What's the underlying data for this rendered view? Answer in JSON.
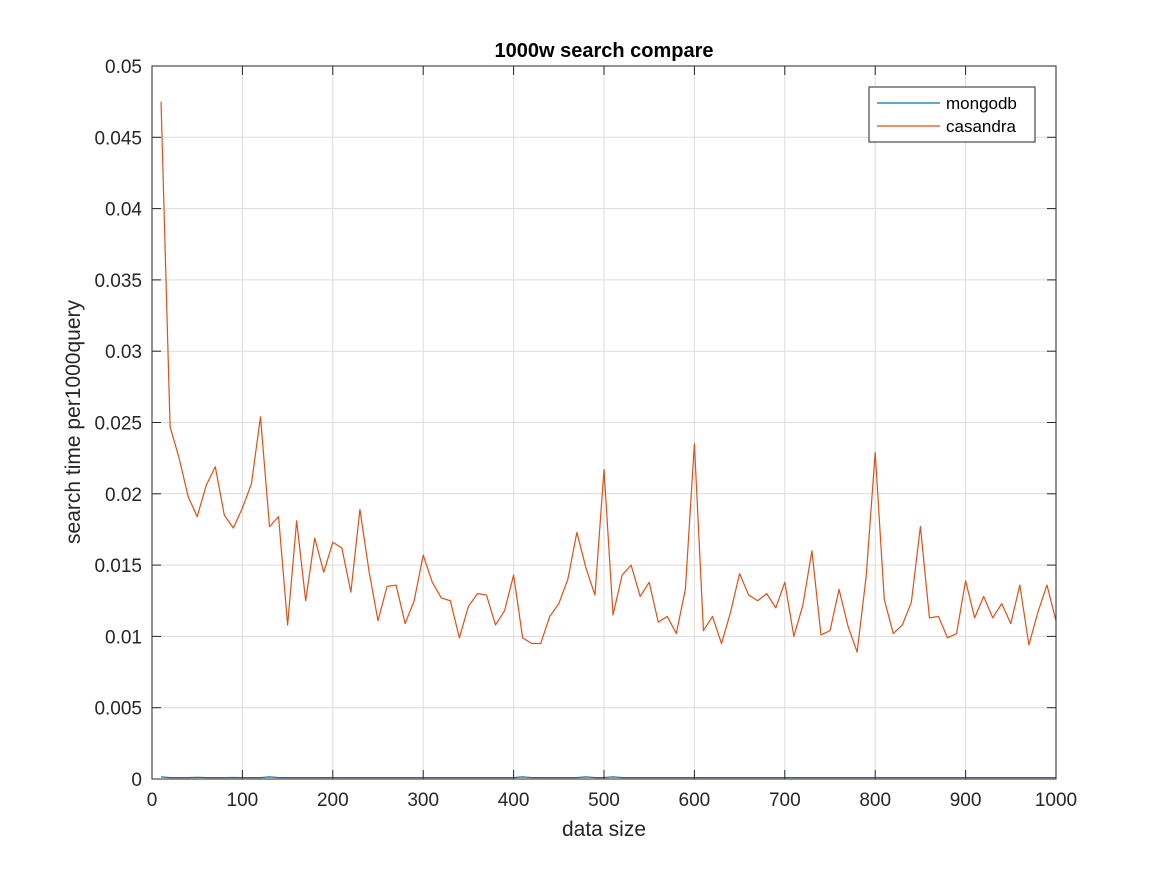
{
  "chart_data": {
    "type": "line",
    "title": "1000w search compare",
    "xlabel": "data size",
    "ylabel": "search time per1000query",
    "xlim": [
      0,
      1000
    ],
    "ylim": [
      0,
      0.05
    ],
    "xticks": [
      "0",
      "100",
      "200",
      "300",
      "400",
      "500",
      "600",
      "700",
      "800",
      "900",
      "1000"
    ],
    "yticks": [
      "0",
      "0.005",
      "0.01",
      "0.015",
      "0.02",
      "0.025",
      "0.03",
      "0.035",
      "0.04",
      "0.045",
      "0.05"
    ],
    "grid": true,
    "legend_position": "top-right",
    "x": [
      10,
      20,
      30,
      40,
      50,
      60,
      70,
      80,
      90,
      100,
      110,
      120,
      130,
      140,
      150,
      160,
      170,
      180,
      190,
      200,
      210,
      220,
      230,
      240,
      250,
      260,
      270,
      280,
      290,
      300,
      310,
      320,
      330,
      340,
      350,
      360,
      370,
      380,
      390,
      400,
      410,
      420,
      430,
      440,
      450,
      460,
      470,
      480,
      490,
      500,
      510,
      520,
      530,
      540,
      550,
      560,
      570,
      580,
      590,
      600,
      610,
      620,
      630,
      640,
      650,
      660,
      670,
      680,
      690,
      700,
      710,
      720,
      730,
      740,
      750,
      760,
      770,
      780,
      790,
      800,
      810,
      820,
      830,
      840,
      850,
      860,
      870,
      880,
      890,
      900,
      910,
      920,
      930,
      940,
      950,
      960,
      970,
      980,
      990,
      1000
    ],
    "series": [
      {
        "name": "mongodb",
        "color": "#0072BD",
        "values": [
          0.00015,
          0.0001,
          0.0001,
          0.0001,
          0.00012,
          0.0001,
          0.0001,
          0.0001,
          0.00011,
          0.0001,
          0.0001,
          0.0001,
          0.00015,
          0.0001,
          0.0001,
          0.0001,
          0.0001,
          0.0001,
          0.0001,
          0.0001,
          0.0001,
          0.0001,
          0.0001,
          0.0001,
          0.0001,
          0.0001,
          0.0001,
          0.0001,
          0.0001,
          0.0001,
          0.0001,
          0.0001,
          0.0001,
          0.0001,
          0.0001,
          0.0001,
          0.0001,
          0.0001,
          0.0001,
          0.0001,
          0.00015,
          0.0001,
          0.0001,
          0.0001,
          0.0001,
          0.0001,
          0.0001,
          0.00015,
          0.0001,
          0.0001,
          0.00015,
          0.0001,
          0.0001,
          0.0001,
          0.0001,
          0.0001,
          0.0001,
          0.0001,
          0.0001,
          0.0001,
          0.0001,
          0.0001,
          0.0001,
          0.0001,
          0.0001,
          0.0001,
          0.0001,
          0.0001,
          0.0001,
          0.0001,
          0.0001,
          0.0001,
          0.0001,
          0.0001,
          0.0001,
          0.0001,
          0.0001,
          0.0001,
          0.0001,
          0.0001,
          0.0001,
          0.0001,
          0.0001,
          0.0001,
          0.0001,
          0.0001,
          0.0001,
          0.0001,
          0.0001,
          0.0001,
          0.0001,
          0.0001,
          0.0001,
          0.0001,
          0.0001,
          0.0001,
          0.0001,
          0.0001,
          0.0001,
          0.0001
        ]
      },
      {
        "name": "casandra",
        "color": "#D95319",
        "values": [
          0.0475,
          0.0247,
          0.0225,
          0.0198,
          0.0184,
          0.0206,
          0.0219,
          0.0185,
          0.0176,
          0.019,
          0.0207,
          0.0254,
          0.0177,
          0.0184,
          0.0108,
          0.0181,
          0.0125,
          0.0169,
          0.0145,
          0.0166,
          0.0162,
          0.0131,
          0.0189,
          0.0146,
          0.0111,
          0.0135,
          0.0136,
          0.0109,
          0.0125,
          0.0157,
          0.0138,
          0.0127,
          0.0125,
          0.0099,
          0.0121,
          0.013,
          0.0129,
          0.0108,
          0.0118,
          0.0143,
          0.0099,
          0.0095,
          0.0095,
          0.0114,
          0.0123,
          0.014,
          0.0173,
          0.0148,
          0.0129,
          0.0217,
          0.0115,
          0.0143,
          0.015,
          0.0128,
          0.0138,
          0.011,
          0.0114,
          0.0102,
          0.0133,
          0.0235,
          0.0104,
          0.0114,
          0.0095,
          0.0117,
          0.0144,
          0.0129,
          0.0125,
          0.013,
          0.012,
          0.0138,
          0.01,
          0.0122,
          0.016,
          0.0101,
          0.0104,
          0.0133,
          0.0107,
          0.0089,
          0.0142,
          0.0229,
          0.0126,
          0.0102,
          0.0108,
          0.0124,
          0.0177,
          0.0113,
          0.0114,
          0.0099,
          0.0102,
          0.0139,
          0.0113,
          0.0128,
          0.0113,
          0.0123,
          0.0109,
          0.0136,
          0.0094,
          0.0117,
          0.0136,
          0.0111
        ]
      }
    ]
  }
}
